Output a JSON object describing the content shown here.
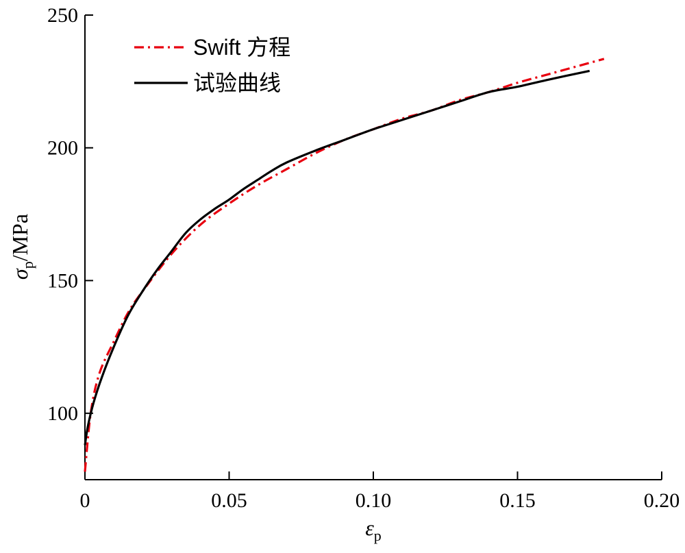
{
  "chart_data": {
    "type": "line",
    "xlabel": {
      "symbol": "ε",
      "subscript": "p"
    },
    "ylabel": {
      "symbol": "σ",
      "subscript": "p",
      "unit": "/MPa"
    },
    "xlim": [
      0,
      0.2
    ],
    "ylim": [
      75,
      250
    ],
    "xticks": [
      0,
      0.05,
      0.1,
      0.15,
      0.2
    ],
    "xtick_labels": [
      "0",
      "0.05",
      "0.10",
      "0.15",
      "0.20"
    ],
    "yticks": [
      100,
      150,
      200,
      250
    ],
    "ytick_labels": [
      "100",
      "150",
      "200",
      "250"
    ],
    "grid": false,
    "legend_position": "top-left",
    "series": [
      {
        "name": "Swift 方程",
        "color": "#e8000f",
        "style": "dash-dot",
        "x": [
          0,
          0.002,
          0.005,
          0.01,
          0.015,
          0.02,
          0.03,
          0.04,
          0.05,
          0.06,
          0.07,
          0.08,
          0.09,
          0.1,
          0.11,
          0.12,
          0.13,
          0.14,
          0.15,
          0.16,
          0.17,
          0.18
        ],
        "y": [
          78,
          100,
          115,
          127,
          138,
          146,
          160,
          171,
          179,
          186,
          192,
          198,
          203,
          207,
          211,
          214,
          218,
          221,
          224.5,
          227.5,
          230.5,
          233.5
        ]
      },
      {
        "name": "试验曲线",
        "color": "#000000",
        "style": "solid",
        "x": [
          0,
          0.001,
          0.003,
          0.006,
          0.01,
          0.015,
          0.02,
          0.025,
          0.03,
          0.035,
          0.04,
          0.045,
          0.05,
          0.055,
          0.06,
          0.065,
          0.07,
          0.08,
          0.09,
          0.1,
          0.11,
          0.12,
          0.13,
          0.14,
          0.15,
          0.16,
          0.175
        ],
        "y": [
          88,
          95,
          104,
          114,
          125,
          137,
          146,
          154,
          161,
          168,
          173,
          177,
          180.5,
          184.5,
          188,
          191.5,
          194.5,
          199,
          203,
          207,
          210.5,
          214,
          217.5,
          221,
          223,
          225.5,
          229
        ]
      }
    ]
  }
}
